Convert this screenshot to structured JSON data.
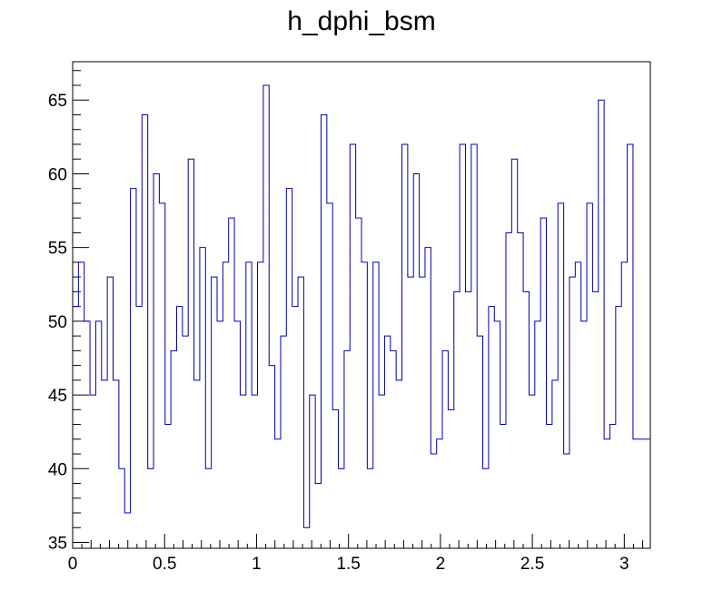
{
  "chart_data": {
    "type": "histogram",
    "title": "h_dphi_bsm",
    "xlabel": "",
    "ylabel": "",
    "xlim": [
      0,
      3.1416
    ],
    "ylim": [
      34.6,
      67.6
    ],
    "grid": false,
    "line_color": "#0000aa",
    "bin_width": 0.031416,
    "x_ticks": [
      0,
      0.5,
      1,
      1.5,
      2,
      2.5,
      3
    ],
    "x_tick_labels": [
      "0",
      "0.5",
      "1",
      "1.5",
      "2",
      "2.5",
      "3"
    ],
    "y_ticks": [
      35,
      40,
      45,
      50,
      55,
      60,
      65
    ],
    "y_tick_labels": [
      "35",
      "40",
      "45",
      "50",
      "55",
      "60",
      "65"
    ],
    "values": [
      51,
      54,
      50,
      45,
      50,
      46,
      53,
      46,
      40,
      37,
      59,
      51,
      64,
      40,
      60,
      58,
      43,
      48,
      51,
      49,
      61,
      46,
      55,
      40,
      53,
      50,
      54,
      57,
      50,
      45,
      54,
      45,
      54,
      66,
      47,
      42,
      49,
      59,
      51,
      53,
      36,
      45,
      39,
      64,
      58,
      44,
      40,
      48,
      62,
      57,
      54,
      40,
      54,
      45,
      49,
      48,
      46,
      62,
      53,
      60,
      53,
      55,
      41,
      42,
      48,
      44,
      52,
      62,
      52,
      62,
      49,
      40,
      51,
      50,
      43,
      56,
      61,
      56,
      52,
      45,
      50,
      57,
      43,
      46,
      58,
      41,
      53,
      54,
      50,
      58,
      52,
      65,
      42,
      43,
      51,
      54,
      62,
      42,
      42,
      42
    ]
  }
}
